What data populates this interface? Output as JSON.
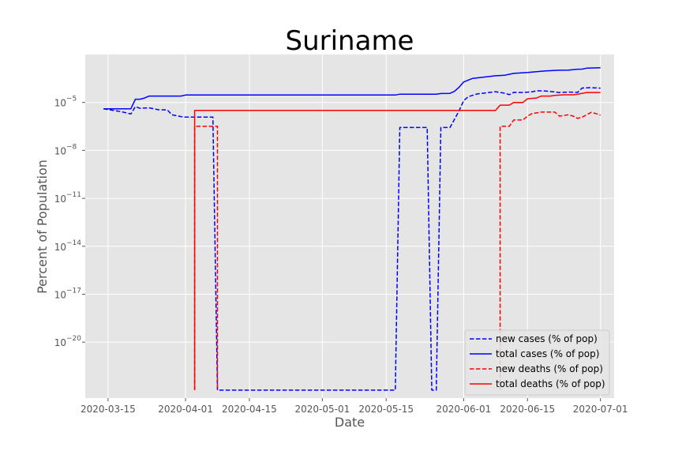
{
  "chart_data": {
    "type": "line",
    "title": "Suriname",
    "xlabel": "Date",
    "ylabel": "Percent of Population",
    "y_scale": "log",
    "grid": true,
    "legend_position": "bottom-right",
    "xlim": [
      "2020-03-10",
      "2020-07-04"
    ],
    "ylim_exponent": [
      -23.5,
      -2.0
    ],
    "x_ticks": [
      "2020-03-15",
      "2020-04-01",
      "2020-04-15",
      "2020-05-01",
      "2020-05-15",
      "2020-06-01",
      "2020-06-15",
      "2020-07-01"
    ],
    "y_ticks": [
      {
        "base": "10",
        "exp": "−20",
        "value": 1e-20
      },
      {
        "base": "10",
        "exp": "−17",
        "value": 1e-17
      },
      {
        "base": "10",
        "exp": "−14",
        "value": 1e-14
      },
      {
        "base": "10",
        "exp": "−11",
        "value": 1e-11
      },
      {
        "base": "10",
        "exp": "−8",
        "value": 1e-08
      },
      {
        "base": "10",
        "exp": "−5",
        "value": 1e-05
      }
    ],
    "series": [
      {
        "name": "new cases (% of pop)",
        "color": "#0000ff",
        "dash": true,
        "points": [
          [
            "2020-03-14",
            4e-06
          ],
          [
            "2020-03-18",
            2.6e-06
          ],
          [
            "2020-03-20",
            1.9e-06
          ],
          [
            "2020-03-21",
            5.5e-06
          ],
          [
            "2020-03-22",
            4.3e-06
          ],
          [
            "2020-03-24",
            4.6e-06
          ],
          [
            "2020-03-26",
            3.5e-06
          ],
          [
            "2020-03-28",
            3.4e-06
          ],
          [
            "2020-03-29",
            1.7e-06
          ],
          [
            "2020-03-31",
            1.3e-06
          ],
          [
            "2020-04-01",
            1.2e-06
          ],
          [
            "2020-04-07",
            1.2e-06
          ],
          [
            "2020-04-08",
            1e-23
          ],
          [
            "2020-05-17",
            1e-23
          ],
          [
            "2020-05-18",
            2.7e-07
          ],
          [
            "2020-05-24",
            2.7e-07
          ],
          [
            "2020-05-25",
            1e-23
          ],
          [
            "2020-05-26",
            1e-23
          ],
          [
            "2020-05-27",
            2.7e-07
          ],
          [
            "2020-05-29",
            2.7e-07
          ],
          [
            "2020-05-31",
            3e-06
          ],
          [
            "2020-06-01",
            1.3e-05
          ],
          [
            "2020-06-02",
            2.3e-05
          ],
          [
            "2020-06-04",
            3.4e-05
          ],
          [
            "2020-06-06",
            4e-05
          ],
          [
            "2020-06-08",
            4.7e-05
          ],
          [
            "2020-06-10",
            3.8e-05
          ],
          [
            "2020-06-11",
            3.1e-05
          ],
          [
            "2020-06-12",
            4.3e-05
          ],
          [
            "2020-06-14",
            4.2e-05
          ],
          [
            "2020-06-16",
            4.6e-05
          ],
          [
            "2020-06-17",
            5.4e-05
          ],
          [
            "2020-06-19",
            5.2e-05
          ],
          [
            "2020-06-22",
            4.2e-05
          ],
          [
            "2020-06-24",
            4.5e-05
          ],
          [
            "2020-06-26",
            4.3e-05
          ],
          [
            "2020-06-27",
            8e-05
          ],
          [
            "2020-06-29",
            8.4e-05
          ],
          [
            "2020-07-01",
            7.8e-05
          ]
        ]
      },
      {
        "name": "total cases (% of pop)",
        "color": "#0000ff",
        "dash": false,
        "points": [
          [
            "2020-03-14",
            4e-06
          ],
          [
            "2020-03-20",
            4e-06
          ],
          [
            "2020-03-21",
            1.6e-05
          ],
          [
            "2020-03-22",
            1.6e-05
          ],
          [
            "2020-03-23",
            1.9e-05
          ],
          [
            "2020-03-24",
            2.5e-05
          ],
          [
            "2020-03-31",
            2.5e-05
          ],
          [
            "2020-04-01",
            2.9e-05
          ],
          [
            "2020-05-17",
            2.9e-05
          ],
          [
            "2020-05-18",
            3.3e-05
          ],
          [
            "2020-05-26",
            3.3e-05
          ],
          [
            "2020-05-27",
            3.6e-05
          ],
          [
            "2020-05-29",
            3.7e-05
          ],
          [
            "2020-05-30",
            5e-05
          ],
          [
            "2020-05-31",
            9e-05
          ],
          [
            "2020-06-01",
            0.00019
          ],
          [
            "2020-06-02",
            0.00025
          ],
          [
            "2020-06-03",
            0.00032
          ],
          [
            "2020-06-06",
            0.0004
          ],
          [
            "2020-06-08",
            0.00047
          ],
          [
            "2020-06-10",
            0.0005
          ],
          [
            "2020-06-11",
            0.00058
          ],
          [
            "2020-06-12",
            0.00066
          ],
          [
            "2020-06-15",
            0.00075
          ],
          [
            "2020-06-17",
            0.00084
          ],
          [
            "2020-06-19",
            0.00095
          ],
          [
            "2020-06-22",
            0.00104
          ],
          [
            "2020-06-24",
            0.00105
          ],
          [
            "2020-06-26",
            0.0012
          ],
          [
            "2020-06-27",
            0.00122
          ],
          [
            "2020-06-28",
            0.0014
          ],
          [
            "2020-07-01",
            0.0015
          ]
        ]
      },
      {
        "name": "new deaths (% of pop)",
        "color": "#ff0000",
        "dash": true,
        "points": [
          [
            "2020-04-03",
            1e-23
          ],
          [
            "2020-04-03",
            3.2e-07
          ],
          [
            "2020-04-07",
            3.2e-07
          ],
          [
            "2020-04-08",
            3.2e-07
          ],
          [
            "2020-04-08",
            1e-23
          ],
          [
            "gap",
            null
          ],
          [
            "2020-06-09",
            1e-23
          ],
          [
            "2020-06-09",
            3.2e-07
          ],
          [
            "2020-06-11",
            3.2e-07
          ],
          [
            "2020-06-12",
            8e-07
          ],
          [
            "2020-06-14",
            8e-07
          ],
          [
            "2020-06-15",
            1.4e-06
          ],
          [
            "2020-06-16",
            2e-06
          ],
          [
            "2020-06-18",
            2.5e-06
          ],
          [
            "2020-06-21",
            2.5e-06
          ],
          [
            "2020-06-22",
            1.4e-06
          ],
          [
            "2020-06-24",
            1.7e-06
          ],
          [
            "2020-06-25",
            1.4e-06
          ],
          [
            "2020-06-26",
            1e-06
          ],
          [
            "2020-06-27",
            1.2e-06
          ],
          [
            "2020-06-29",
            2.4e-06
          ],
          [
            "2020-06-30",
            2e-06
          ],
          [
            "2020-07-01",
            1.6e-06
          ]
        ]
      },
      {
        "name": "total deaths (% of pop)",
        "color": "#ff0000",
        "dash": false,
        "points": [
          [
            "2020-04-03",
            1e-23
          ],
          [
            "2020-04-03",
            3.2e-06
          ],
          [
            "2020-06-08",
            3.2e-06
          ],
          [
            "2020-06-09",
            6.8e-06
          ],
          [
            "2020-06-11",
            6.8e-06
          ],
          [
            "2020-06-12",
            1e-05
          ],
          [
            "2020-06-14",
            1e-05
          ],
          [
            "2020-06-15",
            1.7e-05
          ],
          [
            "2020-06-17",
            1.9e-05
          ],
          [
            "2020-06-18",
            2.5e-05
          ],
          [
            "2020-06-20",
            2.5e-05
          ],
          [
            "2020-06-21",
            2.8e-05
          ],
          [
            "2020-06-23",
            3e-05
          ],
          [
            "2020-06-25",
            3e-05
          ],
          [
            "2020-06-26",
            3.3e-05
          ],
          [
            "2020-06-28",
            4.2e-05
          ],
          [
            "2020-07-01",
            4.2e-05
          ]
        ]
      }
    ]
  }
}
